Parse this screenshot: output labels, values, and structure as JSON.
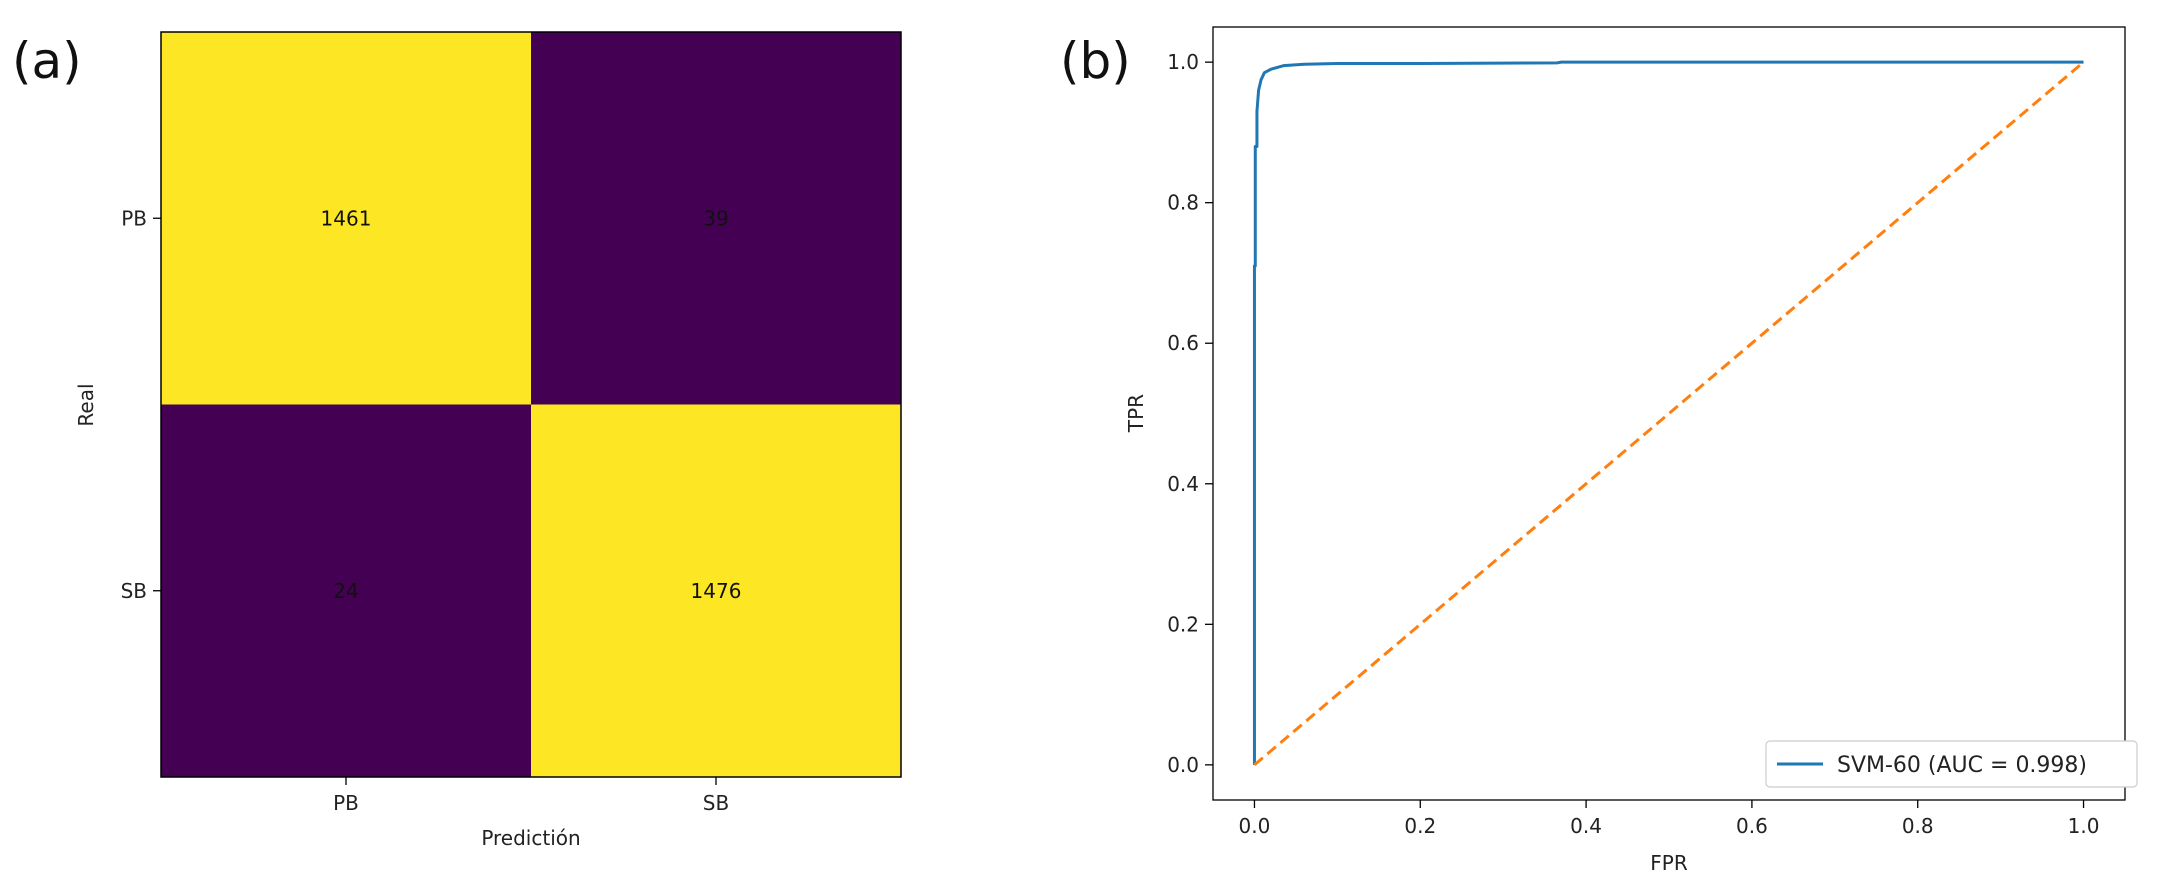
{
  "panels": {
    "a_label": "(a)",
    "b_label": "(b)"
  },
  "chart_data": [
    {
      "type": "heatmap",
      "title": "",
      "xlabel": "Predictión",
      "ylabel": "Real",
      "x_categories": [
        "PB",
        "SB"
      ],
      "y_categories": [
        "PB",
        "SB"
      ],
      "values": [
        [
          1461,
          39
        ],
        [
          24,
          1476
        ]
      ],
      "colors": {
        "high": "#fde725",
        "low": "#440154"
      }
    },
    {
      "type": "line",
      "title": "",
      "xlabel": "FPR",
      "ylabel": "TPR",
      "xlim": [
        -0.05,
        1.05
      ],
      "ylim": [
        -0.05,
        1.05
      ],
      "xticks": [
        "0.0",
        "0.2",
        "0.4",
        "0.6",
        "0.8",
        "1.0"
      ],
      "yticks": [
        "0.0",
        "0.2",
        "0.4",
        "0.6",
        "0.8",
        "1.0"
      ],
      "grid": false,
      "legend_position": "lower-right",
      "series": [
        {
          "name": "SVM-60 (AUC = 0.998)",
          "color": "#1f77b4",
          "style": "solid",
          "x": [
            0,
            0,
            0.001,
            0.001,
            0.003,
            0.003,
            0.005,
            0.008,
            0.012,
            0.02,
            0.035,
            0.06,
            0.1,
            0.2,
            0.365,
            0.37,
            0.6,
            1.0
          ],
          "y": [
            0,
            0.71,
            0.71,
            0.88,
            0.88,
            0.93,
            0.96,
            0.975,
            0.985,
            0.99,
            0.995,
            0.997,
            0.998,
            0.998,
            0.999,
            1.0,
            1.0,
            1.0
          ]
        },
        {
          "name": "",
          "color": "#ff7f0e",
          "style": "dashed",
          "x": [
            0,
            1
          ],
          "y": [
            0,
            1
          ]
        }
      ]
    }
  ]
}
